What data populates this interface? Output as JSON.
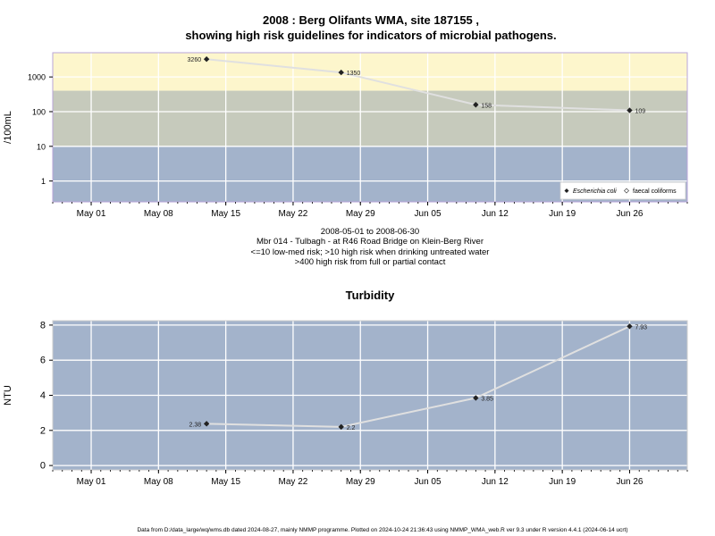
{
  "title_line1": "2008 : Berg Olifants WMA, site 187155 ,",
  "title_line2": "showing high risk guidelines for indicators of microbial pathogens.",
  "subtitle_lines": [
    "2008-05-01 to 2008-06-30",
    "Mbr 014 - Tulbagh - at R46 Road Bridge on Klein-Berg River",
    "<=10 low-med risk; >10 high risk when drinking untreated water",
    ">400 high risk from full or partial contact"
  ],
  "footer": "Data from D:/data_large/wq/wms.db dated 2024-08-27, mainly NMMP programme. Plotted on 2024-10-24 21:36:43 using NMMP_WMA_web.R ver 9.3 under R version 4.4.1 (2024-06-14 ucrt)",
  "colors": {
    "high_risk_contact": "#fdf6cc",
    "high_risk_drinking": "#c6cabc",
    "low_risk": "#a3b3cb",
    "line": "#e0e0e0",
    "point": "#222222"
  },
  "chart_data": [
    {
      "type": "line",
      "title": "",
      "ylabel": "/100mL",
      "yscale": "log",
      "ylim": [
        0.25,
        5000
      ],
      "yticks": [
        1,
        10,
        100,
        1000
      ],
      "ytick_labels": [
        "1",
        "10",
        "100",
        "1000"
      ],
      "xlim": [
        "2008-04-27",
        "2008-07-02"
      ],
      "xticks": [
        "2008-05-01",
        "2008-05-08",
        "2008-05-15",
        "2008-05-22",
        "2008-05-29",
        "2008-06-05",
        "2008-06-12",
        "2008-06-19",
        "2008-06-26"
      ],
      "xtick_labels": [
        "May 01",
        "May 08",
        "May 15",
        "May 22",
        "May 29",
        "Jun 05",
        "Jun 12",
        "Jun 19",
        "Jun 26"
      ],
      "bands": [
        {
          "from": 0.25,
          "to": 10,
          "color": "#a3b3cb"
        },
        {
          "from": 10,
          "to": 400,
          "color": "#c6cabc"
        },
        {
          "from": 400,
          "to": 5000,
          "color": "#fdf6cc"
        }
      ],
      "series": [
        {
          "name": "Escherichia coli",
          "x": [
            "2008-05-13",
            "2008-05-27",
            "2008-06-10",
            "2008-06-26"
          ],
          "y": [
            3260,
            1350,
            158,
            109
          ],
          "labels": [
            "3260",
            "1350",
            "158",
            "109"
          ]
        }
      ],
      "legend": {
        "position": "bottom-right",
        "items": [
          "Escherichia coli",
          "faecal coliforms"
        ]
      }
    },
    {
      "type": "line",
      "title": "Turbidity",
      "ylabel": "NTU",
      "yscale": "linear",
      "ylim": [
        -0.25,
        8.25
      ],
      "yticks": [
        0,
        2,
        4,
        6,
        8
      ],
      "ytick_labels": [
        "0",
        "2",
        "4",
        "6",
        "8"
      ],
      "xlim": [
        "2008-04-27",
        "2008-07-02"
      ],
      "xticks": [
        "2008-05-01",
        "2008-05-08",
        "2008-05-15",
        "2008-05-22",
        "2008-05-29",
        "2008-06-05",
        "2008-06-12",
        "2008-06-19",
        "2008-06-26"
      ],
      "xtick_labels": [
        "May 01",
        "May 08",
        "May 15",
        "May 22",
        "May 29",
        "Jun 05",
        "Jun 12",
        "Jun 19",
        "Jun 26"
      ],
      "series": [
        {
          "x": [
            "2008-05-13",
            "2008-05-27",
            "2008-06-10",
            "2008-06-26"
          ],
          "y": [
            2.38,
            2.2,
            3.85,
            7.93
          ],
          "labels": [
            "2.38",
            "2.2",
            "3.85",
            "7.93"
          ]
        }
      ]
    }
  ]
}
